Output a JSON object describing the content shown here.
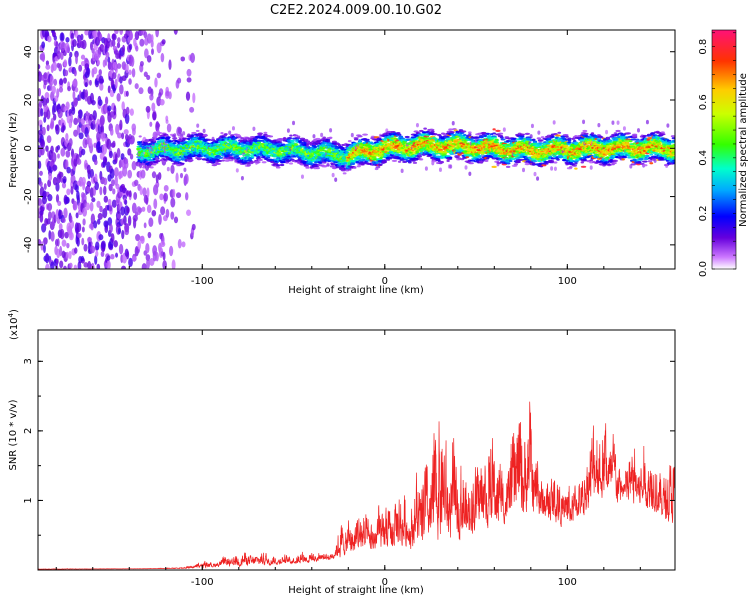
{
  "title": "C2E2.2024.009.00.10.G02",
  "colors": {
    "snr_line": "#ee2222",
    "axes": "#000000",
    "background": "#ffffff"
  },
  "chart_data": [
    {
      "type": "heatmap",
      "xlabel": "Height of straight line (km)",
      "ylabel": "Frequency (Hz)",
      "xlim": [
        -190,
        159
      ],
      "ylim": [
        -50,
        49
      ],
      "x_ticks": [
        -100,
        0,
        100
      ],
      "x_tick_labels": [
        "-100",
        "0",
        "100"
      ],
      "y_ticks": [
        -40,
        -20,
        0,
        20,
        40
      ],
      "y_tick_labels": [
        "-40",
        "-20",
        "0",
        "20",
        "40"
      ],
      "grid": false,
      "colorbar": {
        "label": "Normalized spectral amplitude",
        "range": [
          0.0,
          0.86
        ],
        "ticks": [
          0.0,
          0.2,
          0.4,
          0.6,
          0.8
        ],
        "tick_labels": [
          "0.0",
          "0.2",
          "0.4",
          "0.6",
          "0.8"
        ],
        "colormap": "rainbow (white-violet-blue-cyan-green-yellow-red-pink)"
      },
      "ridge": {
        "center_hz": [
          [
            -130,
            -1
          ],
          [
            -100,
            0
          ],
          [
            -50,
            -1
          ],
          [
            -20,
            -3
          ],
          [
            0,
            0
          ],
          [
            20,
            1
          ],
          [
            40,
            1
          ],
          [
            80,
            -1
          ],
          [
            120,
            0
          ],
          [
            159,
            0
          ]
        ],
        "half_width_hz": 5,
        "peak_level": 0.8
      },
      "noise_region_x": [
        -190,
        -105
      ]
    },
    {
      "type": "line",
      "xlabel": "Height of straight line (km)",
      "ylabel": "SNR (10 * v/v)",
      "y_multiplier_label": "(x10",
      "y_multiplier_exponent": "4",
      "xlim": [
        -190,
        159
      ],
      "ylim": [
        0,
        3.45
      ],
      "x_ticks": [
        -100,
        0,
        100
      ],
      "x_tick_labels": [
        "-100",
        "0",
        "100"
      ],
      "y_ticks": [
        1,
        2,
        3
      ],
      "y_tick_labels": [
        "1",
        "2",
        "3"
      ],
      "grid": false,
      "series": [
        {
          "envelope": [
            [
              -190,
              0.02
            ],
            [
              -130,
              0.02
            ],
            [
              -110,
              0.05
            ],
            [
              -100,
              0.15
            ],
            [
              -85,
              0.25
            ],
            [
              -70,
              0.4
            ],
            [
              -60,
              0.25
            ],
            [
              -45,
              0.35
            ],
            [
              -30,
              0.3
            ],
            [
              -25,
              0.8
            ],
            [
              -15,
              1.1
            ],
            [
              -5,
              1.2
            ],
            [
              5,
              1.3
            ],
            [
              15,
              1.6
            ],
            [
              25,
              2.4
            ],
            [
              32,
              2.9
            ],
            [
              40,
              2.2
            ],
            [
              50,
              1.8
            ],
            [
              57,
              2.7
            ],
            [
              65,
              2.0
            ],
            [
              72,
              2.7
            ],
            [
              78,
              3.45
            ],
            [
              85,
              2.0
            ],
            [
              95,
              1.6
            ],
            [
              105,
              1.5
            ],
            [
              112,
              2.5
            ],
            [
              120,
              2.9
            ],
            [
              128,
              2.0
            ],
            [
              138,
              2.1
            ],
            [
              145,
              2.2
            ],
            [
              152,
              2.1
            ],
            [
              159,
              1.9
            ]
          ],
          "baseline": [
            [
              -190,
              0.01
            ],
            [
              -110,
              0.02
            ],
            [
              -80,
              0.05
            ],
            [
              -40,
              0.1
            ],
            [
              -20,
              0.2
            ],
            [
              0,
              0.25
            ],
            [
              20,
              0.3
            ],
            [
              40,
              0.4
            ],
            [
              60,
              0.6
            ],
            [
              80,
              0.7
            ],
            [
              100,
              0.6
            ],
            [
              120,
              1.0
            ],
            [
              140,
              0.9
            ],
            [
              159,
              0.6
            ]
          ]
        }
      ]
    }
  ]
}
